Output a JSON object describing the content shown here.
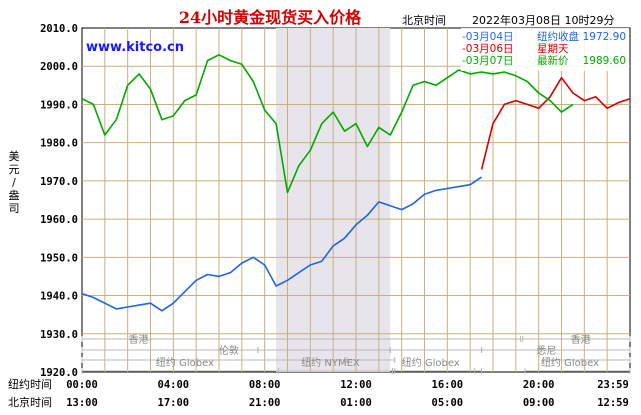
{
  "title": "24小时黄金现货买入价格",
  "header": {
    "tz": "北京时间",
    "datetime": "2022年03月08日 10时29分"
  },
  "site": "www.kitco.cn",
  "ylabel_chars": [
    "美",
    "元",
    "/",
    "盎",
    "司"
  ],
  "row_labels": {
    "ny": "纽约时间",
    "bj": "北京时间"
  },
  "colors": {
    "blue": "#1f66e0",
    "red": "#d40000",
    "green": "#00aa00",
    "grid": "#c8b27a",
    "shade": "#e8e4ec"
  },
  "legend": [
    {
      "date": "-03月04日",
      "label": "纽约收盘",
      "value": "1972.90",
      "color": "#1f66e0"
    },
    {
      "date": "-03月06日",
      "label": "星期天",
      "value": "",
      "color": "#d40000"
    },
    {
      "date": "-03月07日",
      "label": "最新价",
      "value": "1989.60",
      "color": "#00aa00"
    }
  ],
  "sessions": {
    "hk": "香港",
    "london": "伦敦",
    "globex": "纽约 Globex",
    "nymex": "纽约 NYMEX",
    "sydney": "悉尼"
  },
  "chart_data": {
    "type": "line",
    "title": "24小时黄金现货买入价格",
    "ylabel": "美元/盎司",
    "ylim": [
      1920,
      2010
    ],
    "yticks": [
      "2010.0",
      "2000.0",
      "1990.0",
      "1980.0",
      "1970.0",
      "1960.0",
      "1950.0",
      "1940.0",
      "1930.0",
      "1920.0"
    ],
    "x_ticks_ny": [
      "00:00",
      "04:00",
      "08:00",
      "12:00",
      "16:00",
      "20:00",
      "23:59"
    ],
    "x_ticks_bj": [
      "13:00",
      "17:00",
      "21:00",
      "01:00",
      "05:00",
      "09:00",
      "12:59"
    ],
    "nymex_hours": [
      8.5,
      13.5
    ],
    "series": [
      {
        "name": "03月04日",
        "color": "#1f66e0",
        "x": [
          0,
          0.5,
          1,
          1.5,
          2,
          2.5,
          3,
          3.5,
          4,
          4.5,
          5,
          5.5,
          6,
          6.5,
          7,
          7.5,
          8,
          8.5,
          9,
          9.5,
          10,
          10.5,
          11,
          11.5,
          12,
          12.5,
          13,
          13.5,
          14,
          14.5,
          15,
          15.5,
          16,
          16.5,
          17,
          17.5
        ],
        "y": [
          1940.5,
          1939.5,
          1938,
          1936.5,
          1937,
          1937.5,
          1938,
          1936,
          1938,
          1941,
          1944,
          1945.5,
          1945,
          1946,
          1948.5,
          1950,
          1948,
          1942.5,
          1944,
          1946,
          1948,
          1949,
          1953,
          1955,
          1958.5,
          1961,
          1964.5,
          1963.5,
          1962.5,
          1964,
          1966.5,
          1967.5,
          1968,
          1968.5,
          1969,
          1971
        ]
      },
      {
        "name": "03月06日",
        "color": "#d40000",
        "x": [
          17.5,
          18,
          18.5,
          19,
          19.5,
          20,
          20.5,
          21,
          21.5,
          22,
          22.5,
          23,
          23.5,
          24
        ],
        "y": [
          1973,
          1985,
          1990,
          1991,
          1990,
          1989,
          1992,
          1997,
          1993,
          1991,
          1992,
          1989,
          1990.5,
          1991.5
        ]
      },
      {
        "name": "03月07日",
        "color": "#00aa00",
        "x": [
          0,
          0.5,
          1,
          1.5,
          2,
          2.5,
          3,
          3.5,
          4,
          4.5,
          5,
          5.5,
          6,
          6.5,
          7,
          7.5,
          8,
          8.5,
          9,
          9.5,
          10,
          10.5,
          11,
          11.5,
          12,
          12.5,
          13,
          13.5,
          14,
          14.5,
          15,
          15.5,
          16,
          16.5,
          17,
          17.5,
          18,
          18.5,
          19,
          19.5,
          20,
          20.5,
          21,
          21.5
        ],
        "y": [
          1991.5,
          1990,
          1982,
          1986,
          1995,
          1998,
          1994,
          1986,
          1987,
          1991,
          1992.5,
          2001.5,
          2003,
          2001.5,
          2000.5,
          1996,
          1988.5,
          1985,
          1967,
          1974,
          1978,
          1985,
          1988,
          1983,
          1985,
          1979,
          1984,
          1982,
          1988,
          1995,
          1996,
          1995,
          1997,
          1999,
          1998,
          1998.5,
          1998,
          1998.5,
          1997.5,
          1996,
          1993,
          1991,
          1988,
          1990
        ]
      }
    ]
  }
}
